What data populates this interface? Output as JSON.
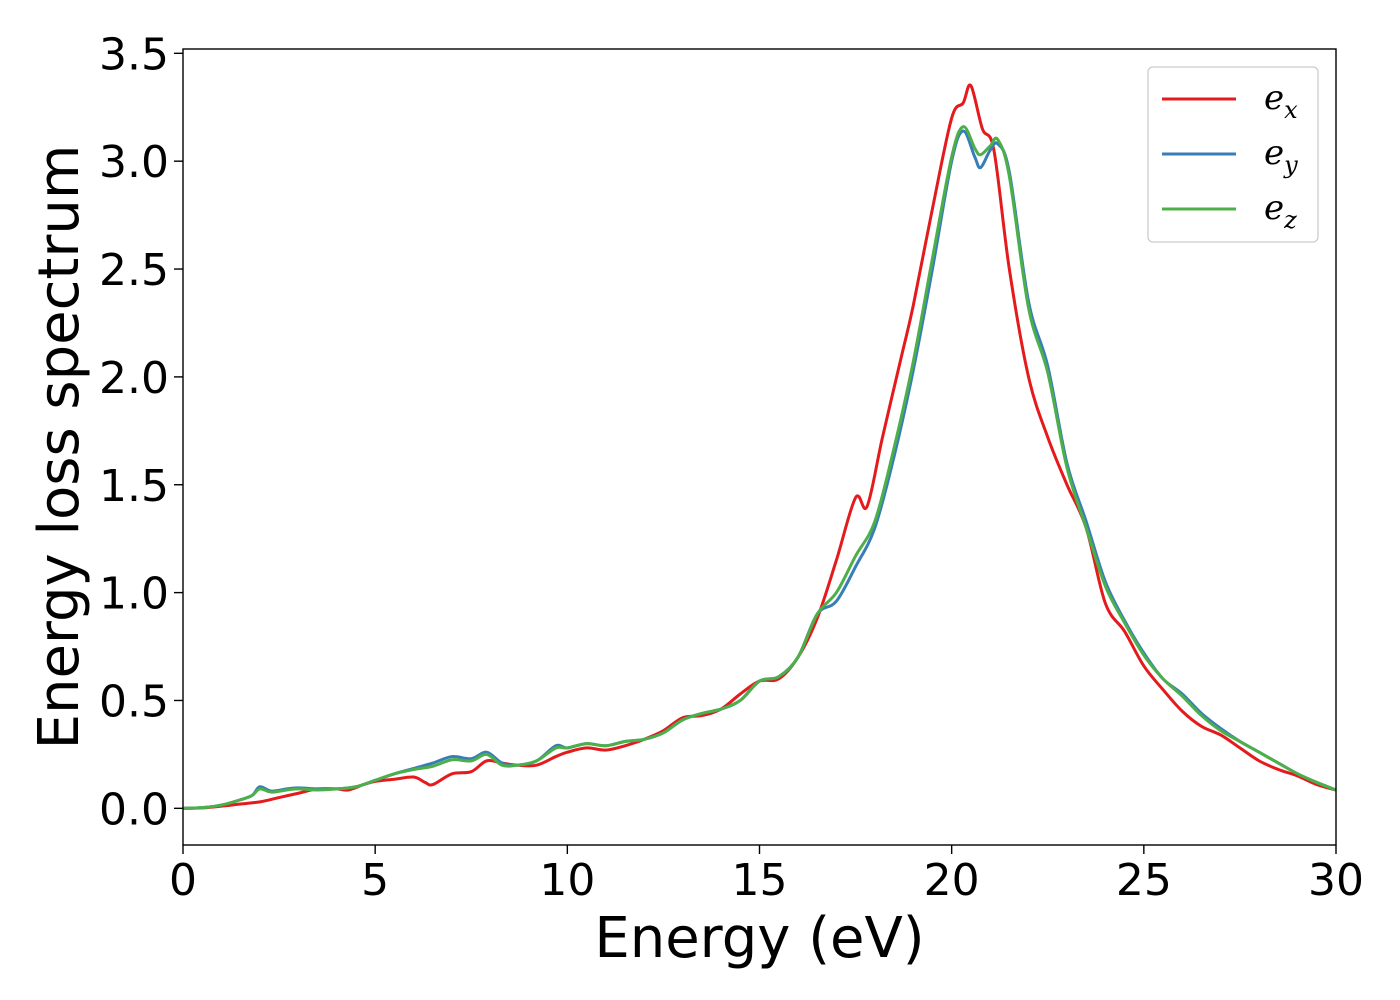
{
  "chart_data": {
    "type": "line",
    "title": "",
    "xlabel": "Energy (eV)",
    "ylabel": "Energy loss spectrum",
    "xlim": [
      0,
      30
    ],
    "ylim": [
      -0.17,
      3.52
    ],
    "xticks": [
      0,
      5,
      10,
      15,
      20,
      25,
      30
    ],
    "xtick_labels": [
      "0",
      "5",
      "10",
      "15",
      "20",
      "25",
      "30"
    ],
    "yticks": [
      0.0,
      0.5,
      1.0,
      1.5,
      2.0,
      2.5,
      3.0,
      3.5
    ],
    "ytick_labels": [
      "0.0",
      "0.5",
      "1.0",
      "1.5",
      "2.0",
      "2.5",
      "3.0",
      "3.5"
    ],
    "grid": false,
    "legend": {
      "position": "top-right",
      "entries": [
        {
          "base": "e",
          "sub": "x"
        },
        {
          "base": "e",
          "sub": "y"
        },
        {
          "base": "e",
          "sub": "z"
        }
      ]
    },
    "series": [
      {
        "name": "e_x",
        "color": "#e41a1c",
        "points": [
          [
            0,
            0
          ],
          [
            0.5,
            0.002
          ],
          [
            1,
            0.01
          ],
          [
            1.5,
            0.02
          ],
          [
            2,
            0.03
          ],
          [
            2.5,
            0.05
          ],
          [
            3,
            0.07
          ],
          [
            3.5,
            0.09
          ],
          [
            4,
            0.09
          ],
          [
            4.3,
            0.085
          ],
          [
            4.7,
            0.11
          ],
          [
            5,
            0.125
          ],
          [
            5.5,
            0.135
          ],
          [
            6,
            0.145
          ],
          [
            6.3,
            0.12
          ],
          [
            6.5,
            0.11
          ],
          [
            7,
            0.16
          ],
          [
            7.5,
            0.17
          ],
          [
            7.9,
            0.22
          ],
          [
            8.3,
            0.21
          ],
          [
            8.7,
            0.2
          ],
          [
            9.2,
            0.2
          ],
          [
            9.7,
            0.24
          ],
          [
            10,
            0.26
          ],
          [
            10.5,
            0.28
          ],
          [
            11,
            0.27
          ],
          [
            11.5,
            0.29
          ],
          [
            12,
            0.32
          ],
          [
            12.5,
            0.36
          ],
          [
            13,
            0.42
          ],
          [
            13.5,
            0.43
          ],
          [
            14,
            0.46
          ],
          [
            14.5,
            0.53
          ],
          [
            15,
            0.59
          ],
          [
            15.5,
            0.6
          ],
          [
            16,
            0.7
          ],
          [
            16.5,
            0.88
          ],
          [
            17,
            1.15
          ],
          [
            17.5,
            1.44
          ],
          [
            17.8,
            1.4
          ],
          [
            18.2,
            1.72
          ],
          [
            18.7,
            2.1
          ],
          [
            19,
            2.33
          ],
          [
            19.5,
            2.78
          ],
          [
            20,
            3.2
          ],
          [
            20.3,
            3.27
          ],
          [
            20.5,
            3.35
          ],
          [
            20.8,
            3.15
          ],
          [
            21.1,
            3.05
          ],
          [
            21.5,
            2.5
          ],
          [
            22,
            2.0
          ],
          [
            22.5,
            1.72
          ],
          [
            23,
            1.5
          ],
          [
            23.5,
            1.3
          ],
          [
            24,
            0.95
          ],
          [
            24.5,
            0.82
          ],
          [
            25,
            0.66
          ],
          [
            25.5,
            0.55
          ],
          [
            26,
            0.45
          ],
          [
            26.5,
            0.38
          ],
          [
            27,
            0.34
          ],
          [
            27.5,
            0.28
          ],
          [
            28,
            0.22
          ],
          [
            28.5,
            0.18
          ],
          [
            29,
            0.15
          ],
          [
            29.5,
            0.11
          ],
          [
            30,
            0.085
          ]
        ]
      },
      {
        "name": "e_y",
        "color": "#377eb8",
        "points": [
          [
            0,
            0
          ],
          [
            0.5,
            0.003
          ],
          [
            1,
            0.015
          ],
          [
            1.5,
            0.04
          ],
          [
            1.8,
            0.06
          ],
          [
            2,
            0.1
          ],
          [
            2.3,
            0.08
          ],
          [
            2.7,
            0.09
          ],
          [
            3,
            0.095
          ],
          [
            3.5,
            0.09
          ],
          [
            4,
            0.09
          ],
          [
            4.5,
            0.1
          ],
          [
            5,
            0.13
          ],
          [
            5.5,
            0.16
          ],
          [
            6,
            0.185
          ],
          [
            6.5,
            0.21
          ],
          [
            7,
            0.24
          ],
          [
            7.5,
            0.23
          ],
          [
            7.9,
            0.26
          ],
          [
            8.3,
            0.21
          ],
          [
            8.7,
            0.2
          ],
          [
            9.2,
            0.22
          ],
          [
            9.7,
            0.29
          ],
          [
            10,
            0.28
          ],
          [
            10.5,
            0.3
          ],
          [
            11,
            0.29
          ],
          [
            11.5,
            0.31
          ],
          [
            12,
            0.32
          ],
          [
            12.5,
            0.35
          ],
          [
            13,
            0.41
          ],
          [
            13.5,
            0.44
          ],
          [
            14,
            0.46
          ],
          [
            14.5,
            0.5
          ],
          [
            15,
            0.59
          ],
          [
            15.5,
            0.61
          ],
          [
            16,
            0.7
          ],
          [
            16.5,
            0.9
          ],
          [
            17,
            0.96
          ],
          [
            17.5,
            1.12
          ],
          [
            18,
            1.3
          ],
          [
            18.5,
            1.63
          ],
          [
            19,
            2.03
          ],
          [
            19.5,
            2.5
          ],
          [
            20,
            3.0
          ],
          [
            20.3,
            3.14
          ],
          [
            20.6,
            3.02
          ],
          [
            20.75,
            2.97
          ],
          [
            21,
            3.05
          ],
          [
            21.2,
            3.08
          ],
          [
            21.5,
            2.95
          ],
          [
            22,
            2.35
          ],
          [
            22.5,
            2.05
          ],
          [
            23,
            1.6
          ],
          [
            23.5,
            1.33
          ],
          [
            24,
            1.05
          ],
          [
            24.5,
            0.87
          ],
          [
            25,
            0.72
          ],
          [
            25.5,
            0.6
          ],
          [
            26,
            0.53
          ],
          [
            26.5,
            0.44
          ],
          [
            27,
            0.37
          ],
          [
            27.5,
            0.31
          ],
          [
            28,
            0.26
          ],
          [
            28.5,
            0.21
          ],
          [
            29,
            0.16
          ],
          [
            29.5,
            0.12
          ],
          [
            30,
            0.085
          ]
        ]
      },
      {
        "name": "e_z",
        "color": "#4daf4a",
        "points": [
          [
            0,
            0
          ],
          [
            0.5,
            0.003
          ],
          [
            1,
            0.015
          ],
          [
            1.5,
            0.04
          ],
          [
            1.8,
            0.06
          ],
          [
            2,
            0.09
          ],
          [
            2.3,
            0.075
          ],
          [
            2.7,
            0.085
          ],
          [
            3,
            0.09
          ],
          [
            3.5,
            0.085
          ],
          [
            4,
            0.09
          ],
          [
            4.5,
            0.1
          ],
          [
            5,
            0.13
          ],
          [
            5.5,
            0.16
          ],
          [
            6,
            0.18
          ],
          [
            6.5,
            0.195
          ],
          [
            7,
            0.225
          ],
          [
            7.5,
            0.22
          ],
          [
            7.9,
            0.25
          ],
          [
            8.3,
            0.2
          ],
          [
            8.7,
            0.2
          ],
          [
            9.2,
            0.22
          ],
          [
            9.7,
            0.28
          ],
          [
            10,
            0.28
          ],
          [
            10.5,
            0.3
          ],
          [
            11,
            0.29
          ],
          [
            11.5,
            0.31
          ],
          [
            12,
            0.32
          ],
          [
            12.5,
            0.35
          ],
          [
            13,
            0.41
          ],
          [
            13.5,
            0.44
          ],
          [
            14,
            0.46
          ],
          [
            14.5,
            0.5
          ],
          [
            15,
            0.59
          ],
          [
            15.5,
            0.61
          ],
          [
            16,
            0.7
          ],
          [
            16.5,
            0.9
          ],
          [
            17,
            1.0
          ],
          [
            17.5,
            1.17
          ],
          [
            18,
            1.33
          ],
          [
            18.5,
            1.67
          ],
          [
            19,
            2.07
          ],
          [
            19.5,
            2.55
          ],
          [
            20,
            3.02
          ],
          [
            20.3,
            3.16
          ],
          [
            20.6,
            3.06
          ],
          [
            20.75,
            3.03
          ],
          [
            21,
            3.07
          ],
          [
            21.2,
            3.1
          ],
          [
            21.5,
            2.93
          ],
          [
            22,
            2.32
          ],
          [
            22.5,
            2.02
          ],
          [
            23,
            1.58
          ],
          [
            23.5,
            1.3
          ],
          [
            24,
            1.03
          ],
          [
            24.5,
            0.86
          ],
          [
            25,
            0.71
          ],
          [
            25.5,
            0.6
          ],
          [
            26,
            0.52
          ],
          [
            26.5,
            0.43
          ],
          [
            27,
            0.36
          ],
          [
            27.5,
            0.31
          ],
          [
            28,
            0.26
          ],
          [
            28.5,
            0.21
          ],
          [
            29,
            0.16
          ],
          [
            29.5,
            0.12
          ],
          [
            30,
            0.085
          ]
        ]
      }
    ]
  }
}
